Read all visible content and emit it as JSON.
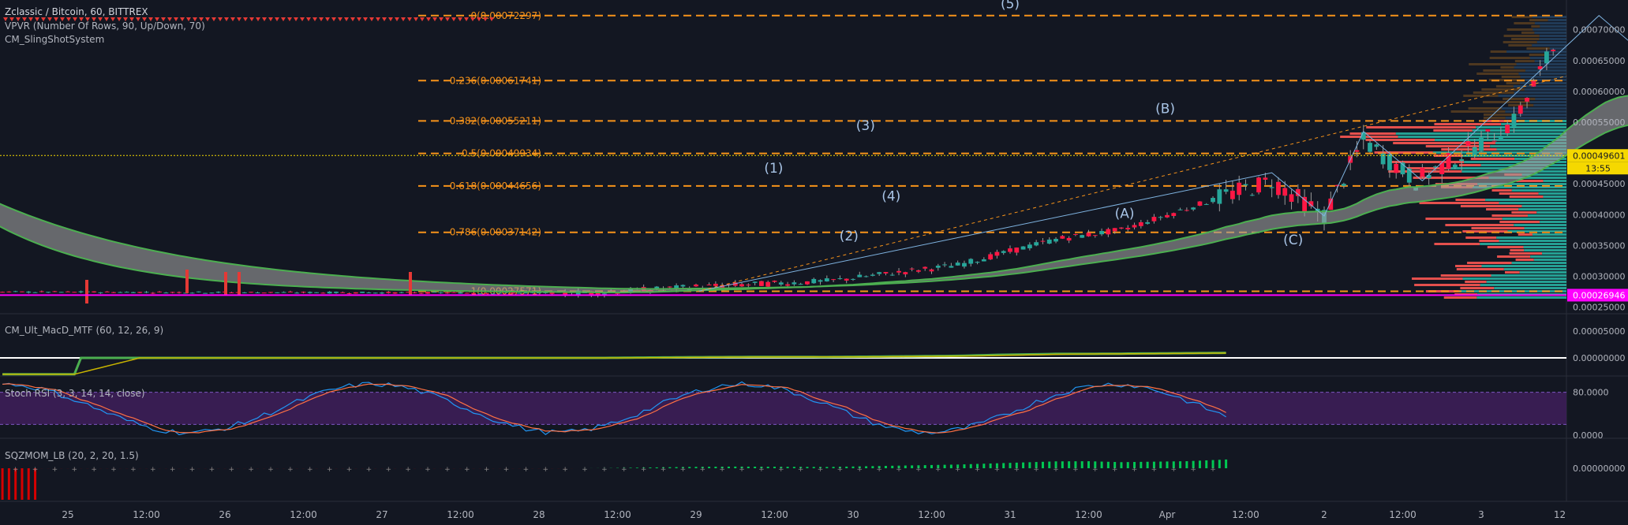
{
  "chart_header": {
    "title": "Zclassic / Bitcoin, 60, BITTREX",
    "indicator1": "VPVR (Number Of Rows, 90, Up/Down, 70)",
    "indicator2": "CM_SlingShotSystem"
  },
  "panes": {
    "macd_title": "CM_Ult_MacD_MTF (60, 12, 26, 9)",
    "stoch_title": "Stoch RSI (3, 3, 14, 14, close)",
    "sqz_title": "SQZMOM_LB (20, 2, 20, 1.5)"
  },
  "colors": {
    "background": "#131722",
    "fib_orange": "#f7931a",
    "bull": "#26a69a",
    "bear": "#ef5350",
    "wave_label": "#a8c4e6",
    "current_price_tag": "#f5d800",
    "magenta": "#ff00ff"
  },
  "chart_data": [
    {
      "type": "candlestick",
      "title": "Zclassic / Bitcoin, 60, BITTREX",
      "y_ticks": [
        "0.00070000",
        "0.00065000",
        "0.00060000",
        "0.00055000",
        "0.00045000",
        "0.00040000",
        "0.00035000",
        "0.00030000",
        "0.00025000"
      ],
      "x_ticks": [
        "25",
        "12:00",
        "26",
        "12:00",
        "27",
        "12:00",
        "28",
        "12:00",
        "29",
        "12:00",
        "30",
        "12:00",
        "31",
        "12:00",
        "Apr",
        "12:00",
        "2",
        "12:00",
        "3",
        "12"
      ],
      "ylim": [
        0.00025,
        0.00073
      ],
      "fib_levels": [
        {
          "label": "0(0.00072297)",
          "value": 0.00072297
        },
        {
          "label": "0.236(0.00061741)",
          "value": 0.00061741
        },
        {
          "label": "0.382(0.00055211)",
          "value": 0.00055211
        },
        {
          "label": "0.5(0.00049934)",
          "value": 0.00049934
        },
        {
          "label": "0.618(0.00044656)",
          "value": 0.00044656
        },
        {
          "label": "0.786(0.00037142)",
          "value": 0.00037142
        },
        {
          "label": "1(0.00027571)",
          "value": 0.00027571
        }
      ],
      "wave_labels": [
        {
          "label": "(1)",
          "t": 57.3,
          "value": 0.000468
        },
        {
          "label": "(2)",
          "t": 62.3,
          "value": 0.000358
        },
        {
          "label": "(3)",
          "t": 63.4,
          "value": 0.000537
        },
        {
          "label": "(4)",
          "t": 65.1,
          "value": 0.000423
        },
        {
          "label": "(5)",
          "t": 73.0,
          "value": 0.000735
        },
        {
          "label": "(A)",
          "t": 80.6,
          "value": 0.000395
        },
        {
          "label": "(B)",
          "t": 83.3,
          "value": 0.000565
        },
        {
          "label": "(C)",
          "t": 91.8,
          "value": 0.000352
        }
      ],
      "current_price": "0.00049601",
      "countdown": "13:55",
      "magenta_level": "0.00026946",
      "magenta_value": 0.00026946,
      "bottom_axis_label": "0.00025000"
    },
    {
      "type": "line",
      "title": "CM_Ult_MacD_MTF (60, 12, 26, 9)",
      "y_ticks": [
        "0.00005000",
        "0.00000000"
      ]
    },
    {
      "type": "line",
      "title": "Stoch RSI (3, 3, 14, 14, close)",
      "y_ticks": [
        "80.0000",
        "0.0000"
      ],
      "ylim": [
        0,
        100
      ]
    },
    {
      "type": "bar",
      "title": "SQZMOM_LB (20, 2, 20, 1.5)",
      "y_ticks": [
        "0.00000000"
      ]
    }
  ]
}
